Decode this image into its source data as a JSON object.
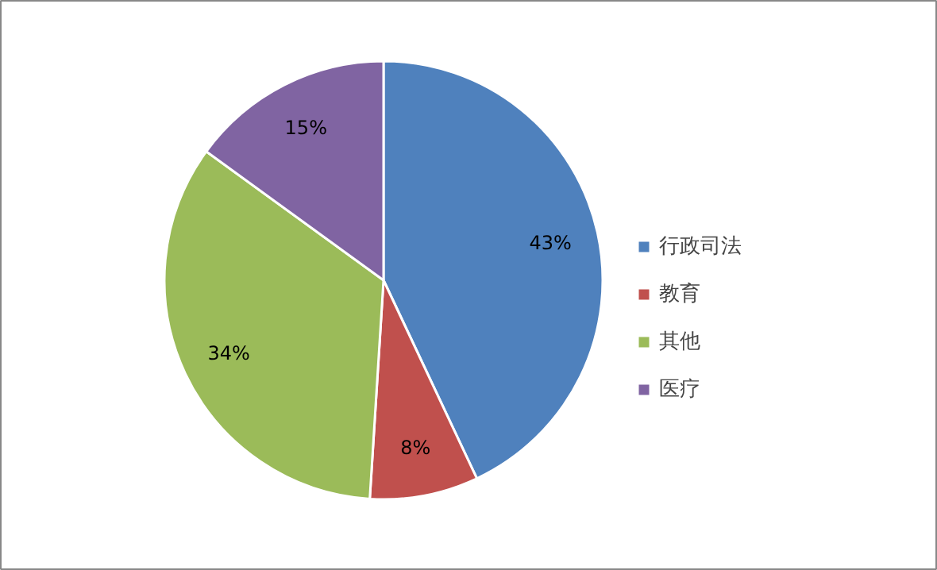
{
  "chart_data": {
    "type": "pie",
    "categories": [
      "行政司法",
      "教育",
      "其他",
      "医疗"
    ],
    "values": [
      43,
      8,
      34,
      15
    ],
    "colors": [
      "#4f81bd",
      "#c0504d",
      "#9bbb59",
      "#8064a2"
    ],
    "value_labels": [
      "43%",
      "8%",
      "34%",
      "15%"
    ],
    "legend": "right"
  }
}
